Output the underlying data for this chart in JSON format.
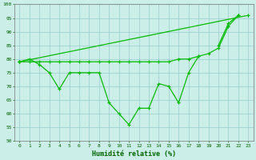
{
  "x": [
    0,
    1,
    2,
    3,
    4,
    5,
    6,
    7,
    8,
    9,
    10,
    11,
    12,
    13,
    14,
    15,
    16,
    17,
    18,
    19,
    20,
    21,
    22,
    23
  ],
  "line_zigzag": [
    79,
    80,
    78,
    75,
    69,
    75,
    75,
    75,
    75,
    64,
    60,
    56,
    62,
    62,
    71,
    70,
    64,
    75,
    81,
    null,
    null,
    null,
    null,
    null
  ],
  "line_flat": [
    79,
    79,
    79,
    79,
    79,
    79,
    79,
    79,
    79,
    79,
    79,
    79,
    79,
    79,
    79,
    79,
    80,
    80,
    81,
    82,
    84,
    92,
    96,
    null
  ],
  "line_diag1": [
    79,
    null,
    null,
    null,
    null,
    null,
    null,
    null,
    null,
    null,
    null,
    null,
    null,
    null,
    null,
    null,
    null,
    null,
    null,
    null,
    null,
    null,
    null,
    96
  ],
  "line_diag2": [
    null,
    null,
    null,
    null,
    null,
    null,
    null,
    null,
    null,
    null,
    null,
    null,
    null,
    null,
    null,
    null,
    null,
    null,
    null,
    null,
    85,
    93,
    96,
    null
  ],
  "xlabel": "Humidité relative (%)",
  "ylim": [
    50,
    100
  ],
  "xlim_min": -0.5,
  "xlim_max": 23.5,
  "yticks": [
    50,
    55,
    60,
    65,
    70,
    75,
    80,
    85,
    90,
    95,
    100
  ],
  "xticks": [
    0,
    1,
    2,
    3,
    4,
    5,
    6,
    7,
    8,
    9,
    10,
    11,
    12,
    13,
    14,
    15,
    16,
    17,
    18,
    19,
    20,
    21,
    22,
    23
  ],
  "bg_color": "#cceee8",
  "grid_color": "#99cccc",
  "line_color": "#00bb00",
  "xlabel_color": "#006600",
  "tick_color": "#006600"
}
